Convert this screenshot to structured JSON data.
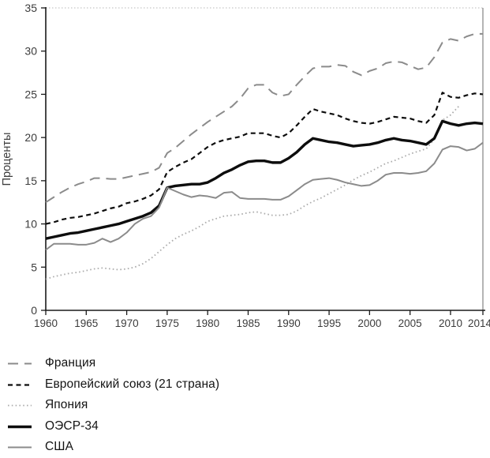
{
  "chart_data": {
    "type": "line",
    "title": "",
    "ylabel": "Проценты",
    "grid": false,
    "legend_position": "below-left",
    "x_axis": {
      "start": 1960,
      "end": 2014,
      "ticks": [
        1960,
        1965,
        1970,
        1975,
        1980,
        1985,
        1990,
        1995,
        2000,
        2005,
        2010,
        2014
      ]
    },
    "y_axis": {
      "min": 0,
      "max": 35,
      "ticks": [
        0,
        5,
        10,
        15,
        20,
        25,
        30,
        35
      ],
      "label": "Проценты"
    },
    "colors": {
      "gray": "#8b8b8b",
      "light_gray": "#acacac",
      "black": "#0d0d0d",
      "axis": "#1a1a1a",
      "tick_text": "#3c3c3c",
      "top_border": "#b8b8b8",
      "right_border": "#8d8d8d"
    },
    "series": [
      {
        "name": "Франция",
        "color": "#8b8b8b",
        "style": "dashed-long",
        "width": 2,
        "start_year": 1960,
        "values": [
          12.5,
          13.1,
          13.7,
          14.2,
          14.6,
          14.9,
          15.3,
          15.3,
          15.2,
          15.2,
          15.4,
          15.6,
          15.8,
          16.0,
          16.5,
          18.2,
          18.8,
          19.6,
          20.4,
          21.1,
          21.8,
          22.4,
          23.0,
          23.6,
          24.5,
          25.7,
          26.1,
          26.1,
          25.2,
          24.8,
          25.0,
          26.1,
          27.1,
          28.0,
          28.2,
          28.2,
          28.4,
          28.3,
          27.6,
          27.2,
          27.7,
          28.0,
          28.6,
          28.8,
          28.7,
          28.3,
          27.9,
          28.1,
          29.3,
          31.0,
          31.4,
          31.2,
          31.7,
          32.0,
          32.0
        ]
      },
      {
        "name": "Европейский союз (21 страна)",
        "color": "#0d0d0d",
        "style": "dashed",
        "width": 2.2,
        "start_year": 1960,
        "values": [
          10.0,
          10.2,
          10.5,
          10.7,
          10.8,
          11.0,
          11.2,
          11.5,
          11.8,
          12.0,
          12.4,
          12.6,
          12.9,
          13.3,
          14.0,
          16.0,
          16.6,
          17.1,
          17.5,
          18.2,
          18.9,
          19.4,
          19.7,
          19.9,
          20.1,
          20.5,
          20.5,
          20.5,
          20.2,
          20.0,
          20.5,
          21.4,
          22.4,
          23.3,
          23.0,
          22.8,
          22.6,
          22.2,
          21.9,
          21.7,
          21.6,
          21.8,
          22.1,
          22.4,
          22.3,
          22.2,
          21.9,
          21.7,
          22.6,
          25.2,
          24.7,
          24.6,
          24.9,
          25.1,
          25.0
        ]
      },
      {
        "name": "Япония",
        "color": "#acacac",
        "style": "dotted",
        "width": 1.8,
        "start_year": 1960,
        "values": [
          3.6,
          3.9,
          4.1,
          4.3,
          4.4,
          4.6,
          4.8,
          4.9,
          4.8,
          4.7,
          4.8,
          5.0,
          5.4,
          6.0,
          6.8,
          7.6,
          8.3,
          8.8,
          9.2,
          9.7,
          10.3,
          10.6,
          10.9,
          11.0,
          11.1,
          11.3,
          11.4,
          11.2,
          11.0,
          11.0,
          11.1,
          11.5,
          12.1,
          12.6,
          13.0,
          13.5,
          14.0,
          14.5,
          15.1,
          15.6,
          16.0,
          16.5,
          17.0,
          17.3,
          17.7,
          18.1,
          18.4,
          18.7,
          19.8,
          22.0,
          22.6,
          23.6
        ]
      },
      {
        "name": "ОЭСР-34",
        "color": "#0d0d0d",
        "style": "solid",
        "width": 3.4,
        "start_year": 1960,
        "values": [
          8.3,
          8.5,
          8.7,
          8.9,
          9.0,
          9.2,
          9.4,
          9.6,
          9.8,
          10.0,
          10.3,
          10.6,
          10.9,
          11.3,
          12.1,
          14.2,
          14.4,
          14.5,
          14.6,
          14.6,
          14.8,
          15.3,
          15.9,
          16.3,
          16.8,
          17.2,
          17.3,
          17.3,
          17.1,
          17.1,
          17.6,
          18.3,
          19.2,
          19.9,
          19.7,
          19.5,
          19.4,
          19.2,
          19.0,
          19.1,
          19.2,
          19.4,
          19.7,
          19.9,
          19.7,
          19.6,
          19.4,
          19.2,
          19.9,
          21.9,
          21.6,
          21.4,
          21.6,
          21.7,
          21.6
        ]
      },
      {
        "name": "США",
        "color": "#8b8b8b",
        "style": "solid",
        "width": 2,
        "start_year": 1960,
        "values": [
          7.0,
          7.7,
          7.7,
          7.7,
          7.6,
          7.6,
          7.8,
          8.3,
          7.9,
          8.3,
          9.0,
          10.0,
          10.6,
          10.9,
          11.9,
          14.2,
          13.8,
          13.4,
          13.1,
          13.3,
          13.2,
          13.0,
          13.6,
          13.7,
          13.0,
          12.9,
          12.9,
          12.9,
          12.8,
          12.8,
          13.2,
          13.9,
          14.6,
          15.1,
          15.2,
          15.3,
          15.1,
          14.8,
          14.6,
          14.4,
          14.5,
          15.0,
          15.7,
          15.9,
          15.9,
          15.8,
          15.9,
          16.1,
          17.0,
          18.6,
          19.0,
          18.9,
          18.5,
          18.7,
          19.4
        ]
      }
    ]
  }
}
